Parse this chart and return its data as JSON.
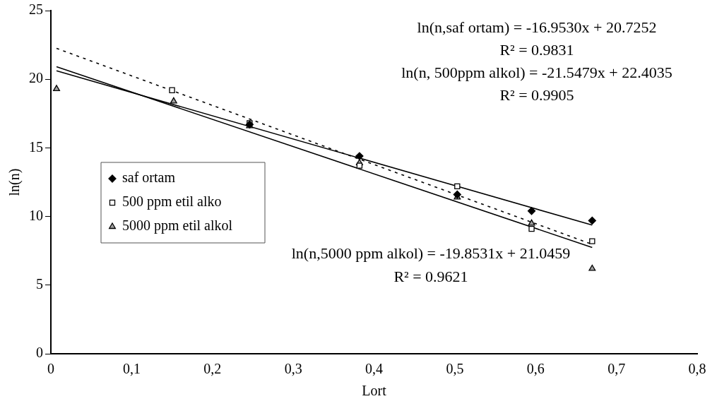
{
  "chart_data": {
    "type": "scatter",
    "xlabel": "Lort",
    "ylabel": "ln(n)",
    "xlim": [
      0,
      0.8
    ],
    "ylim": [
      0,
      25
    ],
    "xticks": [
      0,
      {
        "value": 0.1,
        "label": "0,1"
      },
      {
        "value": 0.2,
        "label": "0,2"
      },
      {
        "value": 0.3,
        "label": "0,3"
      },
      {
        "value": 0.4,
        "label": "0,4"
      },
      {
        "value": 0.5,
        "label": "0,5"
      },
      {
        "value": 0.6,
        "label": "0,6"
      },
      {
        "value": 0.7,
        "label": "0,7"
      },
      {
        "value": 0.8,
        "label": "0,8"
      }
    ],
    "yticks": [
      0,
      5,
      10,
      15,
      20,
      25
    ],
    "grid": false,
    "legend": "left",
    "series": [
      {
        "name": "saf ortam",
        "marker": "diamond",
        "color": "#000000",
        "x": [
          0.246,
          0.382,
          0.503,
          0.595,
          0.67
        ],
        "values": [
          16.7,
          14.4,
          11.6,
          10.4,
          9.7
        ]
      },
      {
        "name": "500 ppm etil alko",
        "marker": "square",
        "color": "#ffffff",
        "x": [
          0.15,
          0.246,
          0.382,
          0.503,
          0.595,
          0.67
        ],
        "values": [
          19.2,
          16.8,
          13.7,
          12.2,
          9.1,
          8.2
        ]
      },
      {
        "name": "5000 ppm etil alkol",
        "marker": "triangle",
        "color": "#a0a0a0",
        "x": [
          0.007,
          0.152,
          0.246,
          0.382,
          0.503,
          0.595,
          0.67
        ],
        "values": [
          19.3,
          18.4,
          16.6,
          13.9,
          11.4,
          9.5,
          6.2
        ]
      },
      {
        "type": "line",
        "line_style": "solid",
        "color": "#000000",
        "x": [
          0.007,
          0.67
        ],
        "values": [
          20.61,
          9.37
        ]
      },
      {
        "type": "line",
        "line_style": "dashed",
        "color": "#000000",
        "x": [
          0.007,
          0.67
        ],
        "values": [
          22.25,
          7.97
        ]
      },
      {
        "type": "line",
        "line_style": "solid",
        "color": "#000000",
        "x": [
          0.007,
          0.67
        ],
        "values": [
          20.91,
          7.74
        ]
      }
    ],
    "annotations": [
      "ln(n,saf ortam) = -16.9530x + 20.7252",
      "R² = 0.9831",
      "ln(n, 500ppm alkol) = -21.5479x + 22.4035",
      "R² = 0.9905",
      "ln(n,5000 ppm alkol) = -19.8531x + 21.0459",
      "R² = 0.9621"
    ]
  }
}
